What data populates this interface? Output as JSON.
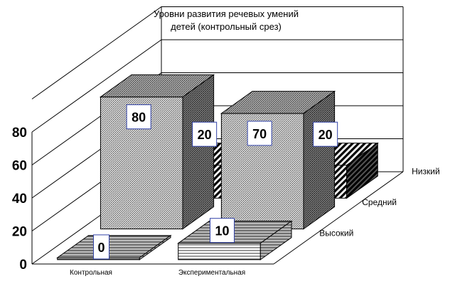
{
  "chart_data": {
    "type": "bar",
    "title": [
      "Уровни развития речевых умений",
      "детей (контрольный срез)"
    ],
    "categories": [
      "Контрольная",
      "Экспериментальная"
    ],
    "series": [
      {
        "name": "Высокий",
        "values": [
          0,
          10
        ],
        "labels": [
          "0",
          "10"
        ]
      },
      {
        "name": "Средний",
        "values": [
          80,
          70
        ],
        "labels": [
          "80",
          "70"
        ]
      },
      {
        "name": "Низкий",
        "values": [
          20,
          20
        ],
        "labels": [
          "20",
          "20"
        ]
      }
    ],
    "y_ticks": [
      "0",
      "20",
      "40",
      "60",
      "80"
    ],
    "ylim": [
      0,
      100
    ],
    "view": "3d",
    "grid": true,
    "colors": {
      "high": "#f2f2f2",
      "mid": "#bdbdbd",
      "low": "#6a6a6a"
    }
  }
}
